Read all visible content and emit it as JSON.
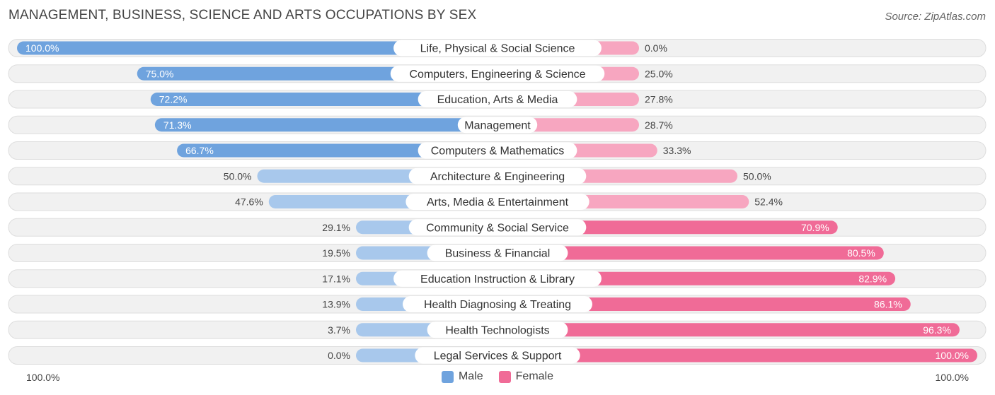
{
  "title": "MANAGEMENT, BUSINESS, SCIENCE AND ARTS OCCUPATIONS BY SEX",
  "source": "Source: ZipAtlas.com",
  "colors": {
    "male_strong": "#6fa3de",
    "male_light": "#a8c8ec",
    "female_strong": "#f06b97",
    "female_light": "#f7a6c0",
    "row_bg": "#f1f1f1",
    "row_border": "#dddddd"
  },
  "axis": {
    "left_label": "100.0%",
    "right_label": "100.0%"
  },
  "legend": [
    {
      "name": "Male",
      "color": "#6fa3de"
    },
    {
      "name": "Female",
      "color": "#f06b97"
    }
  ],
  "chart_data": {
    "type": "bar",
    "orientation": "horizontal-diverging",
    "title": "MANAGEMENT, BUSINESS, SCIENCE AND ARTS OCCUPATIONS BY SEX",
    "xlim": [
      -100,
      100
    ],
    "categories": [
      "Life, Physical & Social Science",
      "Computers, Engineering & Science",
      "Education, Arts & Media",
      "Management",
      "Computers & Mathematics",
      "Architecture & Engineering",
      "Arts, Media & Entertainment",
      "Community & Social Service",
      "Business & Financial",
      "Education Instruction & Library",
      "Health Diagnosing & Treating",
      "Health Technologists",
      "Legal Services & Support"
    ],
    "series": [
      {
        "name": "Male",
        "values": [
          100.0,
          75.0,
          72.2,
          71.3,
          66.7,
          50.0,
          47.6,
          29.1,
          19.5,
          17.1,
          13.9,
          3.7,
          0.0
        ],
        "labels": [
          "100.0%",
          "75.0%",
          "72.2%",
          "71.3%",
          "66.7%",
          "50.0%",
          "47.6%",
          "29.1%",
          "19.5%",
          "17.1%",
          "13.9%",
          "3.7%",
          "0.0%"
        ]
      },
      {
        "name": "Female",
        "values": [
          0.0,
          25.0,
          27.8,
          28.7,
          33.3,
          50.0,
          52.4,
          70.9,
          80.5,
          82.9,
          86.1,
          96.3,
          100.0
        ],
        "labels": [
          "0.0%",
          "25.0%",
          "27.8%",
          "28.7%",
          "33.3%",
          "50.0%",
          "52.4%",
          "70.9%",
          "80.5%",
          "82.9%",
          "86.1%",
          "96.3%",
          "100.0%"
        ]
      }
    ]
  }
}
